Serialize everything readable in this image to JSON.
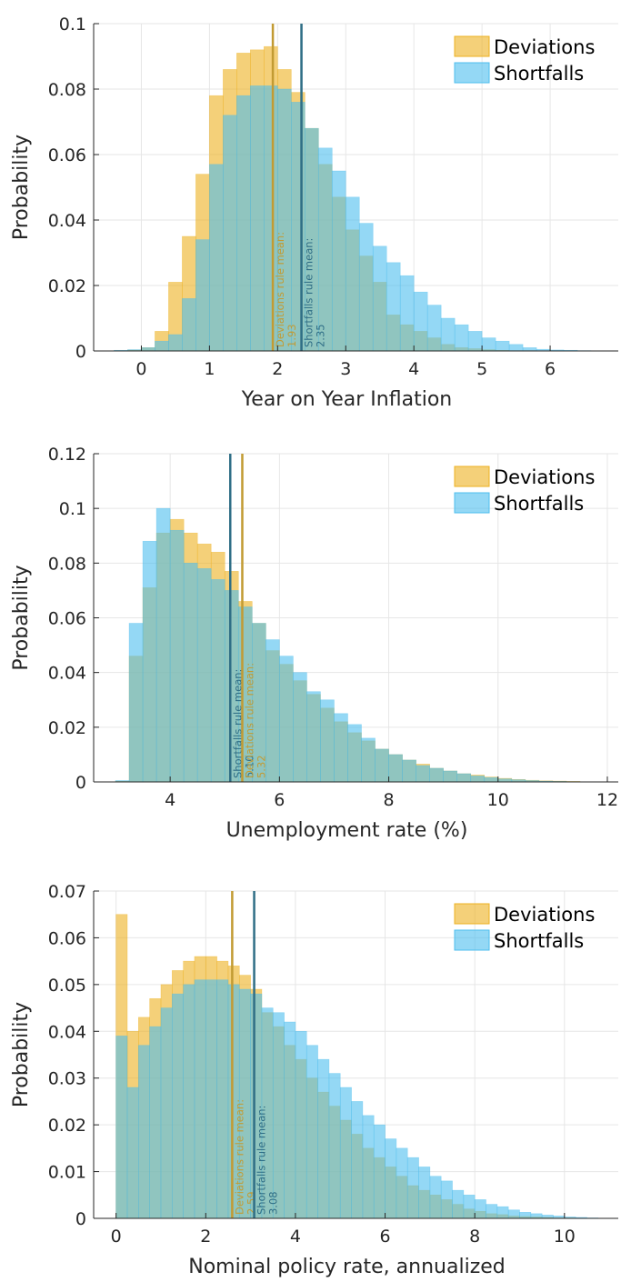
{
  "chart_data": [
    {
      "type": "histogram",
      "xlabel": "Year on Year Inflation",
      "ylabel": "Probability",
      "xlim": [
        -0.7,
        7
      ],
      "xticks": [
        0,
        1,
        2,
        3,
        4,
        5,
        6
      ],
      "ylim": [
        0,
        0.1
      ],
      "yticks": [
        0,
        0.02,
        0.04,
        0.06,
        0.08,
        0.1
      ],
      "grid": true,
      "legend": "northeast",
      "bins": [
        -0.4,
        -0.2,
        0,
        0.2,
        0.4,
        0.6,
        0.8,
        1,
        1.2,
        1.4,
        1.6,
        1.8,
        2,
        2.2,
        2.4,
        2.6,
        2.8,
        3,
        3.2,
        3.4,
        3.6,
        3.8,
        4,
        4.2,
        4.4,
        4.6,
        4.8,
        5,
        5.2,
        5.4,
        5.6,
        5.8,
        6,
        6.2,
        6.4,
        6.6
      ],
      "series": [
        {
          "name": "Deviations",
          "color": "#EDB120",
          "values": [
            0.0001,
            0.0003,
            0.001,
            0.006,
            0.021,
            0.035,
            0.054,
            0.078,
            0.086,
            0.091,
            0.092,
            0.093,
            0.086,
            0.079,
            0.068,
            0.057,
            0.047,
            0.037,
            0.029,
            0.021,
            0.011,
            0.008,
            0.006,
            0.004,
            0.002,
            0.001,
            0.0007,
            0.0004,
            0.0002,
            0.0001,
            0.0001,
            0,
            0,
            0,
            0
          ]
        },
        {
          "name": "Shortfalls",
          "color": "#4DBEEE",
          "values": [
            0.0002,
            0.0004,
            0.001,
            0.003,
            0.005,
            0.016,
            0.034,
            0.057,
            0.072,
            0.078,
            0.081,
            0.081,
            0.08,
            0.076,
            0.068,
            0.062,
            0.055,
            0.047,
            0.039,
            0.032,
            0.027,
            0.023,
            0.018,
            0.014,
            0.01,
            0.008,
            0.006,
            0.004,
            0.003,
            0.002,
            0.001,
            0.0005,
            0.0003,
            0.0002,
            0.0001
          ]
        }
      ],
      "mean_lines": [
        {
          "name": "Deviations rule mean:",
          "value": 1.93,
          "label": "1.93",
          "color": "#C29B33"
        },
        {
          "name": "Shortfalls rule mean:",
          "value": 2.35,
          "label": "2.35",
          "color": "#2F6E86"
        }
      ]
    },
    {
      "type": "histogram",
      "xlabel": "Unemployment rate (%)",
      "ylabel": "Probability",
      "xlim": [
        2.6,
        12.2
      ],
      "xticks": [
        4,
        6,
        8,
        10,
        12
      ],
      "ylim": [
        0,
        0.12
      ],
      "yticks": [
        0,
        0.02,
        0.04,
        0.06,
        0.08,
        0.1,
        0.12
      ],
      "grid": true,
      "legend": "northeast",
      "bins": [
        3,
        3.25,
        3.5,
        3.75,
        4,
        4.25,
        4.5,
        4.75,
        5,
        5.25,
        5.5,
        5.75,
        6,
        6.25,
        6.5,
        6.75,
        7,
        7.25,
        7.5,
        7.75,
        8,
        8.25,
        8.5,
        8.75,
        9,
        9.25,
        9.5,
        9.75,
        10,
        10.25,
        10.5,
        10.75,
        11,
        11.25,
        11.5
      ],
      "series": [
        {
          "name": "Deviations",
          "color": "#EDB120",
          "values": [
            0.0003,
            0.046,
            0.071,
            0.091,
            0.096,
            0.091,
            0.087,
            0.084,
            0.077,
            0.066,
            0.058,
            0.048,
            0.043,
            0.037,
            0.032,
            0.027,
            0.022,
            0.018,
            0.015,
            0.012,
            0.01,
            0.008,
            0.0065,
            0.005,
            0.004,
            0.003,
            0.0025,
            0.0018,
            0.0013,
            0.0009,
            0.0006,
            0.0004,
            0.0003,
            0.0002
          ]
        },
        {
          "name": "Shortfalls",
          "color": "#4DBEEE",
          "values": [
            0.0005,
            0.058,
            0.088,
            0.1,
            0.092,
            0.08,
            0.078,
            0.074,
            0.07,
            0.064,
            0.058,
            0.052,
            0.046,
            0.04,
            0.033,
            0.03,
            0.025,
            0.021,
            0.016,
            0.012,
            0.01,
            0.008,
            0.006,
            0.005,
            0.004,
            0.003,
            0.0022,
            0.0016,
            0.0011,
            0.0008,
            0.0005,
            0.0003,
            0.0002,
            0.0001
          ]
        }
      ],
      "mean_lines": [
        {
          "name": "Shortfalls rule mean:",
          "value": 5.1,
          "label": "5.10",
          "color": "#2F6E86"
        },
        {
          "name": "Deviations rule mean:",
          "value": 5.32,
          "label": "5.32",
          "color": "#C29B33"
        }
      ]
    },
    {
      "type": "histogram",
      "xlabel": "Nominal policy rate, annualized",
      "ylabel": "Probability",
      "xlim": [
        -0.5,
        11.2
      ],
      "xticks": [
        0,
        2,
        4,
        6,
        8,
        10
      ],
      "ylim": [
        0,
        0.07
      ],
      "yticks": [
        0,
        0.01,
        0.02,
        0.03,
        0.04,
        0.05,
        0.06,
        0.07
      ],
      "grid": true,
      "legend": "northeast",
      "bins": [
        0,
        0.25,
        0.5,
        0.75,
        1,
        1.25,
        1.5,
        1.75,
        2,
        2.25,
        2.5,
        2.75,
        3,
        3.25,
        3.5,
        3.75,
        4,
        4.25,
        4.5,
        4.75,
        5,
        5.25,
        5.5,
        5.75,
        6,
        6.25,
        6.5,
        6.75,
        7,
        7.25,
        7.5,
        7.75,
        8,
        8.25,
        8.5,
        8.75,
        9,
        9.25,
        9.5,
        9.75,
        10,
        10.25,
        10.5,
        10.75
      ],
      "series": [
        {
          "name": "Deviations",
          "color": "#EDB120",
          "values": [
            0.065,
            0.04,
            0.043,
            0.047,
            0.05,
            0.053,
            0.055,
            0.056,
            0.056,
            0.055,
            0.054,
            0.052,
            0.049,
            0.044,
            0.041,
            0.037,
            0.034,
            0.03,
            0.027,
            0.024,
            0.021,
            0.018,
            0.015,
            0.013,
            0.011,
            0.009,
            0.007,
            0.006,
            0.005,
            0.004,
            0.003,
            0.002,
            0.0015,
            0.001,
            0.0008,
            0.0005,
            0.0004,
            0.0003,
            0.0002,
            0.0001,
            0.0001,
            0,
            0
          ]
        },
        {
          "name": "Shortfalls",
          "color": "#4DBEEE",
          "values": [
            0.039,
            0.028,
            0.037,
            0.041,
            0.045,
            0.048,
            0.05,
            0.051,
            0.051,
            0.051,
            0.05,
            0.049,
            0.048,
            0.045,
            0.044,
            0.042,
            0.04,
            0.037,
            0.034,
            0.031,
            0.028,
            0.025,
            0.022,
            0.02,
            0.017,
            0.015,
            0.013,
            0.011,
            0.009,
            0.008,
            0.006,
            0.005,
            0.004,
            0.003,
            0.0025,
            0.0018,
            0.0013,
            0.001,
            0.0007,
            0.0005,
            0.0003,
            0.0002,
            0.0001
          ]
        }
      ],
      "mean_lines": [
        {
          "name": "Deviations rule mean:",
          "value": 2.59,
          "label": "2.59",
          "color": "#C29B33"
        },
        {
          "name": "Shortfalls rule mean:",
          "value": 3.08,
          "label": "3.08",
          "color": "#2F6E86"
        }
      ]
    }
  ]
}
